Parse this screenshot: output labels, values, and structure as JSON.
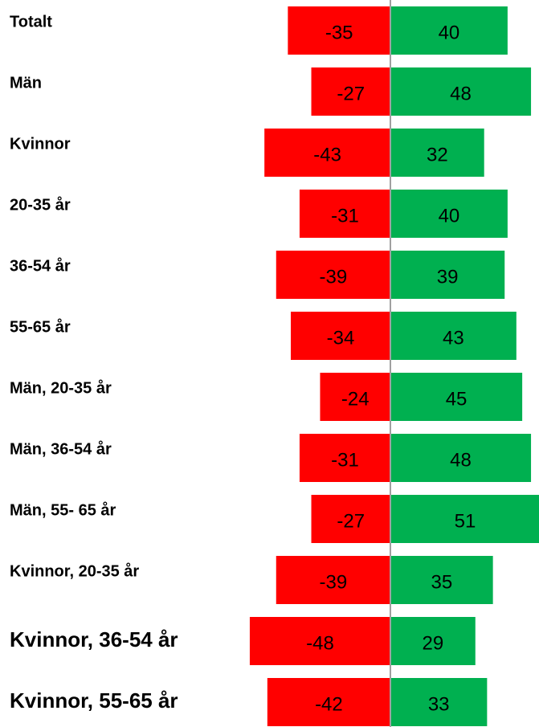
{
  "chart_data": {
    "type": "diverging-bar",
    "categories": [
      "Totalt",
      "Män",
      "Kvinnor",
      "20-35 år",
      "36-54 år",
      "55-65 år",
      "Män, 20-35 år",
      "Män, 36-54 år",
      "Män, 55- 65 år",
      "Kvinnor, 20-35 år",
      "Kvinnor, 36-54 år",
      "Kvinnor, 55-65 år"
    ],
    "series": [
      {
        "color": "#ff0000",
        "values": [
          -35,
          -27,
          -43,
          -31,
          -39,
          -34,
          -24,
          -31,
          -27,
          -39,
          -48,
          -42
        ]
      },
      {
        "color": "#00b050",
        "values": [
          40,
          48,
          32,
          40,
          39,
          43,
          45,
          48,
          51,
          35,
          29,
          33
        ]
      }
    ],
    "xlim": [
      -51,
      51
    ]
  }
}
